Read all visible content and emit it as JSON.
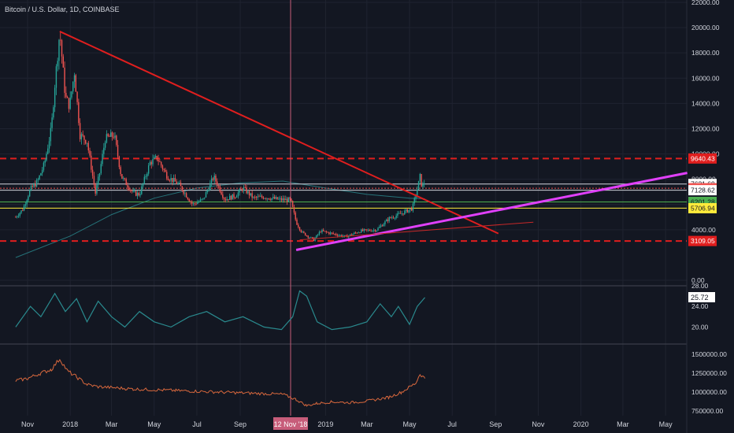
{
  "header": {
    "symbol_title": "Bitcoin / U.S. Dollar, 1D, COINBASE"
  },
  "colors": {
    "background": "#131722",
    "grid": "#1f2330",
    "text": "#d1d4dc",
    "candle_up": "#26a69a",
    "candle_down": "#ef5350",
    "trendline_red": "#e01e1e",
    "trendline_magenta": "#e040fb",
    "crosshair": "#c75d7a",
    "indicator_line": "#2a8a8e",
    "volume_line": "#d9683d"
  },
  "chart_data": [
    {
      "type": "candlestick",
      "name": "price",
      "title": "Bitcoin / U.S. Dollar, 1D, COINBASE",
      "ylim": [
        0,
        22000
      ],
      "y_ticks": [
        "22000.00",
        "20000.00",
        "18000.00",
        "16000.00",
        "14000.00",
        "12000.00",
        "10000.00",
        "8000.00",
        "6000.00",
        "4000.00",
        "0.00"
      ],
      "x_ticks": [
        "Nov",
        "2018",
        "Mar",
        "May",
        "Jul",
        "Sep",
        "2019",
        "Mar",
        "May",
        "Jul",
        "Sep",
        "Nov",
        "2020",
        "Mar",
        "May"
      ],
      "crosshair_date_label": "12 Nov '18",
      "price_path": [
        [
          "2017-10-15",
          5000
        ],
        [
          "2017-10-25",
          5600
        ],
        [
          "2017-11-05",
          7200
        ],
        [
          "2017-11-15",
          7800
        ],
        [
          "2017-11-25",
          9200
        ],
        [
          "2017-12-05",
          12000
        ],
        [
          "2017-12-10",
          15500
        ],
        [
          "2017-12-17",
          19700
        ],
        [
          "2017-12-25",
          14500
        ],
        [
          "2017-12-31",
          13800
        ],
        [
          "2018-01-07",
          16500
        ],
        [
          "2018-01-15",
          11500
        ],
        [
          "2018-01-25",
          11000
        ],
        [
          "2018-02-06",
          6900
        ],
        [
          "2018-02-12",
          8500
        ],
        [
          "2018-02-20",
          11200
        ],
        [
          "2018-03-05",
          11500
        ],
        [
          "2018-03-15",
          8200
        ],
        [
          "2018-04-01",
          6900
        ],
        [
          "2018-04-10",
          6800
        ],
        [
          "2018-04-25",
          9300
        ],
        [
          "2018-05-05",
          9700
        ],
        [
          "2018-05-20",
          8200
        ],
        [
          "2018-06-05",
          7600
        ],
        [
          "2018-06-25",
          6000
        ],
        [
          "2018-07-10",
          6400
        ],
        [
          "2018-07-25",
          8200
        ],
        [
          "2018-08-10",
          6400
        ],
        [
          "2018-08-25",
          6700
        ],
        [
          "2018-09-05",
          7300
        ],
        [
          "2018-09-20",
          6500
        ],
        [
          "2018-10-05",
          6600
        ],
        [
          "2018-10-25",
          6400
        ],
        [
          "2018-11-12",
          6350
        ],
        [
          "2018-11-20",
          4600
        ],
        [
          "2018-11-28",
          3800
        ],
        [
          "2018-12-15",
          3200
        ],
        [
          "2018-12-25",
          3900
        ],
        [
          "2019-01-10",
          3700
        ],
        [
          "2019-01-30",
          3450
        ],
        [
          "2019-02-20",
          3900
        ],
        [
          "2019-03-15",
          4000
        ],
        [
          "2019-04-02",
          4900
        ],
        [
          "2019-04-20",
          5300
        ],
        [
          "2019-05-05",
          5700
        ],
        [
          "2019-05-12",
          7200
        ],
        [
          "2019-05-16",
          8200
        ],
        [
          "2019-05-19",
          7300
        ],
        [
          "2019-05-23",
          7900
        ]
      ],
      "horizontal_levels": [
        {
          "value": 9640.43,
          "label": "9640.43",
          "style": "dashed-red"
        },
        {
          "value": 7621.69,
          "label": "7621.69",
          "style": "white"
        },
        {
          "value": 7286.66,
          "label": "7286.66",
          "style": "red"
        },
        {
          "value": 7128.62,
          "label": "7128.62",
          "style": "white"
        },
        {
          "value": 6201.28,
          "label": "6201.28",
          "style": "green"
        },
        {
          "value": 5706.94,
          "label": "5706.94",
          "style": "yellow"
        },
        {
          "value": 3109.05,
          "label": "3109.05",
          "style": "dashed-red"
        }
      ],
      "trendlines": [
        {
          "name": "descending-red",
          "from": [
            "2017-12-17",
            19700
          ],
          "to": [
            "2019-09-05",
            3700
          ]
        },
        {
          "name": "ascending-magenta",
          "from": [
            "2018-11-20",
            2400
          ],
          "to": [
            "2020-06-01",
            8500
          ]
        },
        {
          "name": "ascending-thin-red",
          "from": [
            "2018-11-25",
            3200
          ],
          "to": [
            "2019-10-25",
            4600
          ]
        }
      ],
      "moving_average": [
        [
          "2017-10-15",
          1800
        ],
        [
          "2018-01-01",
          3500
        ],
        [
          "2018-03-01",
          5200
        ],
        [
          "2018-05-01",
          6500
        ],
        [
          "2018-07-01",
          7300
        ],
        [
          "2018-09-01",
          7700
        ],
        [
          "2018-11-01",
          7850
        ],
        [
          "2019-01-01",
          7300
        ],
        [
          "2019-03-01",
          6800
        ],
        [
          "2019-05-01",
          6500
        ],
        [
          "2019-05-23",
          6450
        ]
      ]
    },
    {
      "type": "line",
      "name": "indicator",
      "ylim": [
        17,
        28
      ],
      "y_ticks": [
        "28.00",
        "24.00",
        "20.00"
      ],
      "last_value_label": "25.72",
      "values": [
        [
          "2017-10-15",
          20
        ],
        [
          "2017-11-05",
          24
        ],
        [
          "2017-11-20",
          22
        ],
        [
          "2017-12-10",
          26.5
        ],
        [
          "2017-12-25",
          23
        ],
        [
          "2018-01-10",
          25.5
        ],
        [
          "2018-01-25",
          21
        ],
        [
          "2018-02-10",
          25
        ],
        [
          "2018-03-01",
          22
        ],
        [
          "2018-03-20",
          20
        ],
        [
          "2018-04-10",
          23
        ],
        [
          "2018-05-01",
          21
        ],
        [
          "2018-05-25",
          20
        ],
        [
          "2018-06-20",
          22
        ],
        [
          "2018-07-15",
          23
        ],
        [
          "2018-08-10",
          21
        ],
        [
          "2018-09-05",
          22
        ],
        [
          "2018-10-05",
          20
        ],
        [
          "2018-10-30",
          19.5
        ],
        [
          "2018-11-15",
          22
        ],
        [
          "2018-11-25",
          27
        ],
        [
          "2018-12-05",
          26
        ],
        [
          "2018-12-20",
          21
        ],
        [
          "2019-01-10",
          19.5
        ],
        [
          "2019-02-05",
          20
        ],
        [
          "2019-03-01",
          21
        ],
        [
          "2019-03-20",
          24.5
        ],
        [
          "2019-04-05",
          22
        ],
        [
          "2019-04-15",
          24
        ],
        [
          "2019-05-01",
          20.5
        ],
        [
          "2019-05-12",
          24
        ],
        [
          "2019-05-23",
          25.72
        ]
      ]
    },
    {
      "type": "line",
      "name": "volume-indicator",
      "ylim": [
        700000,
        1550000
      ],
      "y_ticks": [
        "1500000.00",
        "1250000.00",
        "1000000.00",
        "750000.00"
      ],
      "values": [
        [
          "2017-10-15",
          1150000
        ],
        [
          "2017-11-01",
          1180000
        ],
        [
          "2017-11-20",
          1250000
        ],
        [
          "2017-12-05",
          1300000
        ],
        [
          "2017-12-17",
          1440000
        ],
        [
          "2017-12-28",
          1280000
        ],
        [
          "2018-01-10",
          1200000
        ],
        [
          "2018-01-25",
          1100000
        ],
        [
          "2018-02-10",
          1070000
        ],
        [
          "2018-03-01",
          1060000
        ],
        [
          "2018-04-01",
          1040000
        ],
        [
          "2018-05-01",
          1030000
        ],
        [
          "2018-06-01",
          1020000
        ],
        [
          "2018-07-01",
          1010000
        ],
        [
          "2018-08-01",
          1000000
        ],
        [
          "2018-09-01",
          990000
        ],
        [
          "2018-10-01",
          980000
        ],
        [
          "2018-11-01",
          970000
        ],
        [
          "2018-11-20",
          900000
        ],
        [
          "2018-12-05",
          820000
        ],
        [
          "2018-12-20",
          850000
        ],
        [
          "2019-01-10",
          870000
        ],
        [
          "2019-02-05",
          860000
        ],
        [
          "2019-03-01",
          880000
        ],
        [
          "2019-04-01",
          930000
        ],
        [
          "2019-04-20",
          1000000
        ],
        [
          "2019-05-10",
          1120000
        ],
        [
          "2019-05-16",
          1240000
        ],
        [
          "2019-05-23",
          1180000
        ]
      ]
    }
  ]
}
